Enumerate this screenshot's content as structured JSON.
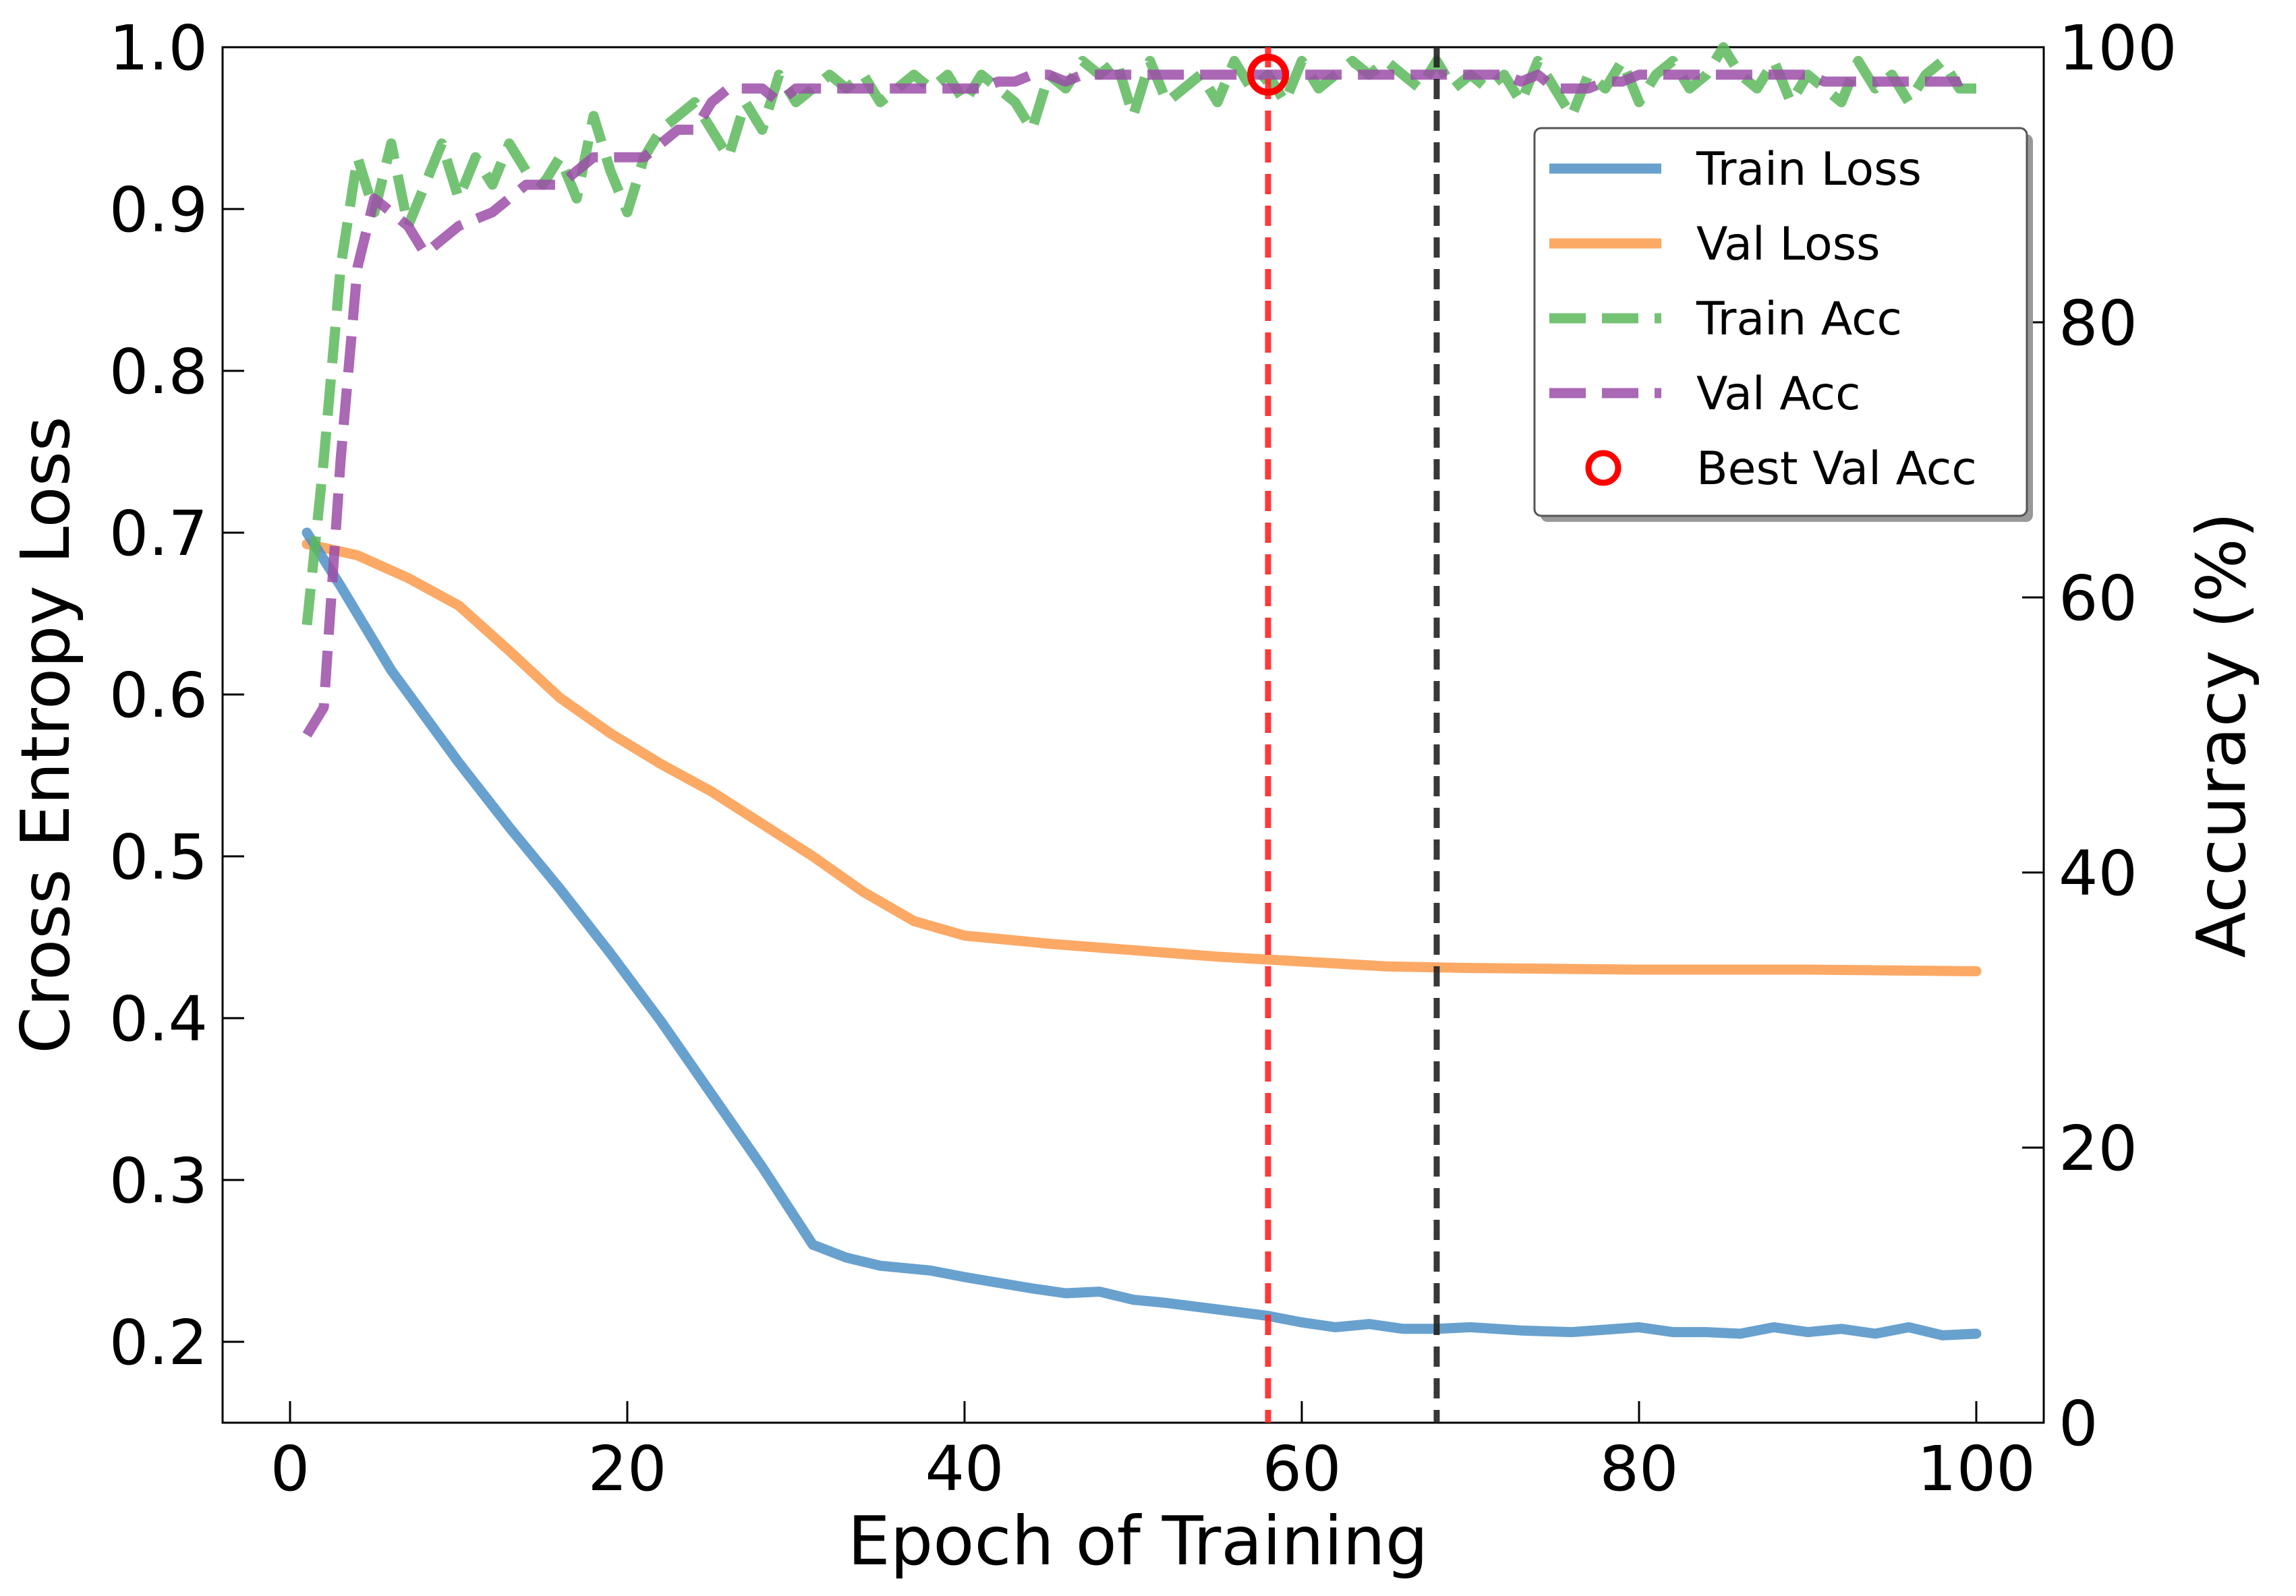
{
  "chart_data": {
    "type": "line",
    "title": "",
    "xlabel": "Epoch of Training",
    "ylabel_left": "Cross Entropy Loss",
    "ylabel_right": "Accuracy (%)",
    "xlim": [
      -4,
      104
    ],
    "ylim_left": [
      0.15,
      1.0
    ],
    "ylim_right": [
      0,
      100
    ],
    "xticks": [
      0,
      20,
      40,
      60,
      80,
      100
    ],
    "xtick_labels": [
      "0",
      "20",
      "40",
      "60",
      "80",
      "100"
    ],
    "yticks_left": [
      0.2,
      0.3,
      0.4,
      0.5,
      0.6,
      0.7,
      0.8,
      0.9,
      1.0
    ],
    "ytick_labels_left": [
      "0.2",
      "0.3",
      "0.4",
      "0.5",
      "0.6",
      "0.7",
      "0.8",
      "0.9",
      "1.0"
    ],
    "yticks_right": [
      0,
      20,
      40,
      60,
      80,
      100
    ],
    "ytick_labels_right": [
      "0",
      "20",
      "40",
      "60",
      "80",
      "100"
    ],
    "grid": false,
    "legend_position": "upper-right",
    "series": [
      {
        "name": "Train Loss",
        "axis": "left",
        "style": "solid",
        "color": "#4e91c6",
        "points": [
          [
            1,
            0.7
          ],
          [
            3,
            0.667
          ],
          [
            6,
            0.615
          ],
          [
            10,
            0.558
          ],
          [
            13,
            0.518
          ],
          [
            16,
            0.48
          ],
          [
            19,
            0.44
          ],
          [
            22,
            0.398
          ],
          [
            25,
            0.353
          ],
          [
            28,
            0.308
          ],
          [
            31,
            0.26
          ],
          [
            33,
            0.252
          ],
          [
            35,
            0.247
          ],
          [
            38,
            0.244
          ],
          [
            40,
            0.24
          ],
          [
            44,
            0.233
          ],
          [
            46,
            0.23
          ],
          [
            48,
            0.231
          ],
          [
            50,
            0.226
          ],
          [
            52,
            0.224
          ],
          [
            55,
            0.22
          ],
          [
            58,
            0.216
          ],
          [
            60,
            0.212
          ],
          [
            62,
            0.209
          ],
          [
            64,
            0.211
          ],
          [
            66,
            0.208
          ],
          [
            68,
            0.208
          ],
          [
            70,
            0.209
          ],
          [
            73,
            0.207
          ],
          [
            76,
            0.206
          ],
          [
            80,
            0.209
          ],
          [
            82,
            0.206
          ],
          [
            84,
            0.206
          ],
          [
            86,
            0.205
          ],
          [
            88,
            0.209
          ],
          [
            90,
            0.206
          ],
          [
            92,
            0.208
          ],
          [
            94,
            0.205
          ],
          [
            96,
            0.209
          ],
          [
            98,
            0.204
          ],
          [
            100,
            0.205
          ]
        ]
      },
      {
        "name": "Val Loss",
        "axis": "left",
        "style": "solid",
        "color": "#fb9a4b",
        "points": [
          [
            1,
            0.693
          ],
          [
            4,
            0.686
          ],
          [
            7,
            0.672
          ],
          [
            10,
            0.655
          ],
          [
            13,
            0.627
          ],
          [
            16,
            0.598
          ],
          [
            19,
            0.576
          ],
          [
            22,
            0.557
          ],
          [
            25,
            0.54
          ],
          [
            28,
            0.52
          ],
          [
            31,
            0.5
          ],
          [
            34,
            0.478
          ],
          [
            37,
            0.46
          ],
          [
            40,
            0.451
          ],
          [
            45,
            0.446
          ],
          [
            50,
            0.442
          ],
          [
            55,
            0.438
          ],
          [
            60,
            0.435
          ],
          [
            65,
            0.432
          ],
          [
            70,
            0.431
          ],
          [
            80,
            0.43
          ],
          [
            90,
            0.43
          ],
          [
            100,
            0.429
          ]
        ]
      },
      {
        "name": "Train Acc",
        "axis": "right",
        "style": "dashed",
        "color": "#5cb85c",
        "points": [
          [
            1,
            58
          ],
          [
            2,
            70
          ],
          [
            3,
            84
          ],
          [
            4,
            92
          ],
          [
            5,
            88
          ],
          [
            6,
            93
          ],
          [
            7,
            87
          ],
          [
            8,
            90
          ],
          [
            9,
            93
          ],
          [
            10,
            89
          ],
          [
            11,
            92
          ],
          [
            12,
            90
          ],
          [
            13,
            93
          ],
          [
            14,
            91
          ],
          [
            15,
            90
          ],
          [
            16,
            92
          ],
          [
            17,
            89
          ],
          [
            18,
            95
          ],
          [
            19,
            91
          ],
          [
            20,
            88
          ],
          [
            21,
            92
          ],
          [
            22,
            94
          ],
          [
            23,
            95
          ],
          [
            24,
            96
          ],
          [
            25,
            94
          ],
          [
            26,
            92
          ],
          [
            27,
            96
          ],
          [
            28,
            94
          ],
          [
            29,
            98
          ],
          [
            30,
            96
          ],
          [
            31,
            97
          ],
          [
            32,
            98
          ],
          [
            33,
            97
          ],
          [
            34,
            98
          ],
          [
            35,
            96
          ],
          [
            36,
            97
          ],
          [
            37,
            98
          ],
          [
            38,
            97
          ],
          [
            39,
            98
          ],
          [
            40,
            96
          ],
          [
            41,
            98
          ],
          [
            42,
            97
          ],
          [
            43,
            96
          ],
          [
            44,
            94
          ],
          [
            45,
            98
          ],
          [
            46,
            97
          ],
          [
            47,
            99
          ],
          [
            48,
            98
          ],
          [
            49,
            99
          ],
          [
            50,
            95
          ],
          [
            51,
            99
          ],
          [
            52,
            96
          ],
          [
            53,
            97
          ],
          [
            54,
            98
          ],
          [
            55,
            96
          ],
          [
            56,
            99
          ],
          [
            57,
            97
          ],
          [
            58,
            98
          ],
          [
            59,
            96
          ],
          [
            60,
            99
          ],
          [
            61,
            97
          ],
          [
            62,
            98
          ],
          [
            63,
            99
          ],
          [
            64,
            98
          ],
          [
            65,
            99
          ],
          [
            66,
            98
          ],
          [
            67,
            97
          ],
          [
            68,
            99
          ],
          [
            69,
            97
          ],
          [
            70,
            98
          ],
          [
            71,
            97
          ],
          [
            72,
            98
          ],
          [
            73,
            96
          ],
          [
            74,
            99
          ],
          [
            75,
            97
          ],
          [
            76,
            95
          ],
          [
            77,
            98
          ],
          [
            78,
            97
          ],
          [
            79,
            99
          ],
          [
            80,
            96
          ],
          [
            81,
            98
          ],
          [
            82,
            99
          ],
          [
            83,
            97
          ],
          [
            84,
            98
          ],
          [
            85,
            100
          ],
          [
            86,
            98
          ],
          [
            87,
            97
          ],
          [
            88,
            99
          ],
          [
            89,
            96
          ],
          [
            90,
            98
          ],
          [
            91,
            97
          ],
          [
            92,
            96
          ],
          [
            93,
            99
          ],
          [
            94,
            97
          ],
          [
            95,
            98
          ],
          [
            96,
            96
          ],
          [
            97,
            98
          ],
          [
            98,
            99
          ],
          [
            99,
            97
          ],
          [
            100,
            97
          ]
        ]
      },
      {
        "name": "Val Acc",
        "axis": "right",
        "style": "dashed",
        "color": "#9b4da8",
        "points": [
          [
            1,
            50
          ],
          [
            2,
            52
          ],
          [
            3,
            70
          ],
          [
            4,
            84
          ],
          [
            5,
            89
          ],
          [
            6,
            88
          ],
          [
            7,
            87
          ],
          [
            8,
            85
          ],
          [
            9,
            86
          ],
          [
            10,
            87
          ],
          [
            11,
            87.5
          ],
          [
            12,
            88
          ],
          [
            13,
            89
          ],
          [
            14,
            90
          ],
          [
            15,
            90
          ],
          [
            16,
            90
          ],
          [
            17,
            91
          ],
          [
            18,
            92
          ],
          [
            19,
            92
          ],
          [
            20,
            92
          ],
          [
            21,
            92
          ],
          [
            22,
            93
          ],
          [
            23,
            94
          ],
          [
            24,
            94
          ],
          [
            25,
            96
          ],
          [
            26,
            97
          ],
          [
            27,
            97
          ],
          [
            28,
            97
          ],
          [
            29,
            96
          ],
          [
            30,
            97
          ],
          [
            31,
            97
          ],
          [
            32,
            97
          ],
          [
            33,
            97
          ],
          [
            34,
            97
          ],
          [
            35,
            97
          ],
          [
            36,
            97
          ],
          [
            37,
            97
          ],
          [
            38,
            97
          ],
          [
            39,
            97
          ],
          [
            40,
            97
          ],
          [
            41,
            97
          ],
          [
            42,
            97.5
          ],
          [
            43,
            97.5
          ],
          [
            44,
            98
          ],
          [
            45,
            98
          ],
          [
            46,
            97.5
          ],
          [
            47,
            98
          ],
          [
            48,
            98
          ],
          [
            49,
            98
          ],
          [
            50,
            98
          ],
          [
            51,
            98
          ],
          [
            52,
            98
          ],
          [
            53,
            98
          ],
          [
            54,
            98
          ],
          [
            55,
            98
          ],
          [
            56,
            98
          ],
          [
            57,
            98
          ],
          [
            58,
            98
          ],
          [
            59,
            98
          ],
          [
            60,
            98
          ],
          [
            61,
            98
          ],
          [
            62,
            98
          ],
          [
            63,
            98
          ],
          [
            64,
            98
          ],
          [
            65,
            98
          ],
          [
            66,
            98
          ],
          [
            67,
            98
          ],
          [
            68,
            98
          ],
          [
            69,
            98
          ],
          [
            70,
            98
          ],
          [
            71,
            98
          ],
          [
            72,
            98
          ],
          [
            73,
            97.5
          ],
          [
            74,
            98
          ],
          [
            75,
            97
          ],
          [
            76,
            97
          ],
          [
            77,
            97
          ],
          [
            78,
            97.5
          ],
          [
            79,
            97.5
          ],
          [
            80,
            98
          ],
          [
            81,
            98
          ],
          [
            82,
            98
          ],
          [
            83,
            98
          ],
          [
            84,
            98
          ],
          [
            85,
            98
          ],
          [
            86,
            98
          ],
          [
            87,
            98
          ],
          [
            88,
            98
          ],
          [
            89,
            98
          ],
          [
            90,
            98
          ],
          [
            91,
            97.5
          ],
          [
            92,
            97.5
          ],
          [
            93,
            97.5
          ],
          [
            94,
            97.5
          ],
          [
            95,
            97.5
          ],
          [
            96,
            97.5
          ],
          [
            97,
            97.5
          ],
          [
            98,
            97.5
          ],
          [
            99,
            97.5
          ],
          [
            100,
            98
          ]
        ]
      }
    ],
    "best_val_acc": {
      "label": "Best Val Acc",
      "epoch": 58,
      "accuracy": 98,
      "color": "#ff0000"
    },
    "vlines": [
      {
        "name": "best-epoch",
        "x": 58,
        "color": "#ff2222"
      },
      {
        "name": "stop-epoch",
        "x": 68,
        "color": "#222222"
      }
    ]
  }
}
